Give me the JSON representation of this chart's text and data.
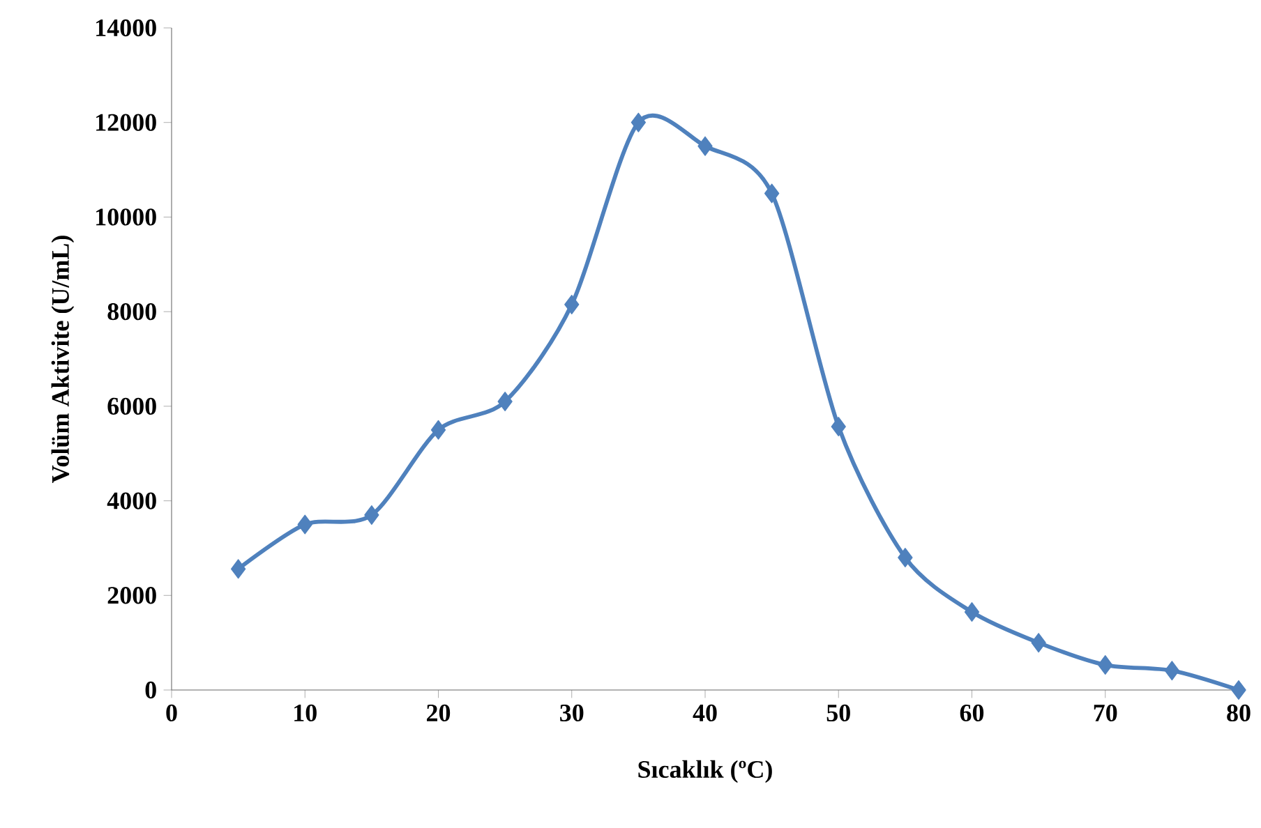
{
  "chart_data": {
    "type": "line",
    "xlabel": "Sıcaklık (ºC)",
    "ylabel": "Volüm Aktivite (U/mL)",
    "x": [
      5,
      10,
      15,
      20,
      25,
      30,
      35,
      40,
      45,
      50,
      55,
      60,
      65,
      70,
      75,
      80
    ],
    "series": [
      {
        "color": "#4f81bd",
        "values": [
          2560,
          3500,
          3700,
          5500,
          6100,
          8150,
          12000,
          11500,
          10500,
          5570,
          2800,
          1650,
          1000,
          530,
          410,
          0
        ]
      }
    ],
    "xlim": [
      0,
      80
    ],
    "xticks": [
      0,
      10,
      20,
      30,
      40,
      50,
      60,
      70,
      80
    ],
    "ylim": [
      0,
      14000
    ],
    "yticks": [
      0,
      2000,
      4000,
      6000,
      8000,
      10000,
      12000,
      14000
    ],
    "marker": "diamond",
    "line_style": "solid"
  }
}
